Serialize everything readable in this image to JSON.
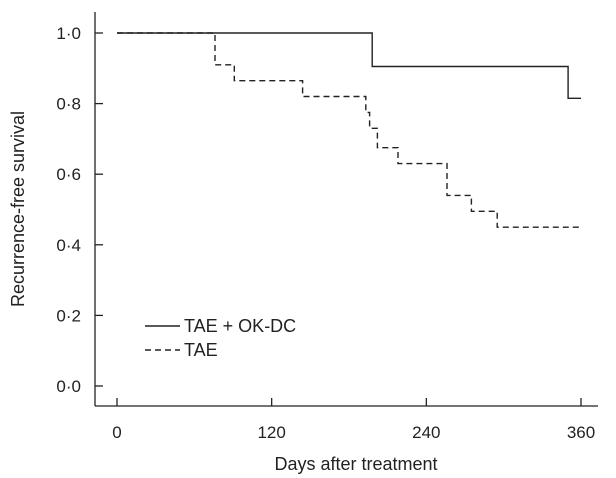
{
  "chart_data": {
    "type": "line",
    "title": "",
    "xlabel": "Days after treatment",
    "ylabel": "Recurrence-free survival",
    "xlim": [
      0,
      360
    ],
    "ylim": [
      0,
      1.0
    ],
    "x_ticks": [
      {
        "value": 0,
        "label": "0"
      },
      {
        "value": 120,
        "label": "120"
      },
      {
        "value": 240,
        "label": "240"
      },
      {
        "value": 360,
        "label": "360"
      }
    ],
    "y_ticks": [
      {
        "value": 0.0,
        "label": "0·0"
      },
      {
        "value": 0.2,
        "label": "0·2"
      },
      {
        "value": 0.4,
        "label": "0·4"
      },
      {
        "value": 0.6,
        "label": "0·6"
      },
      {
        "value": 0.8,
        "label": "0·8"
      },
      {
        "value": 1.0,
        "label": "1·0"
      }
    ],
    "grid": false,
    "legend_position": "bottom-left",
    "step_style": "post",
    "series": [
      {
        "name": "TAE + OK-DC",
        "line_style": "solid",
        "color": "#222222",
        "x": [
          0,
          198,
          198,
          350,
          350,
          360
        ],
        "y": [
          1.0,
          1.0,
          0.905,
          0.905,
          0.815,
          0.815
        ]
      },
      {
        "name": "TAE",
        "line_style": "dashed",
        "color": "#222222",
        "x": [
          0,
          76,
          76,
          91,
          91,
          144,
          144,
          193,
          193,
          196,
          196,
          202,
          202,
          218,
          218,
          256,
          256,
          275,
          275,
          295,
          295,
          360
        ],
        "y": [
          1.0,
          1.0,
          0.91,
          0.91,
          0.865,
          0.865,
          0.82,
          0.82,
          0.775,
          0.775,
          0.73,
          0.73,
          0.675,
          0.675,
          0.63,
          0.63,
          0.54,
          0.54,
          0.495,
          0.495,
          0.45,
          0.45
        ]
      }
    ]
  }
}
